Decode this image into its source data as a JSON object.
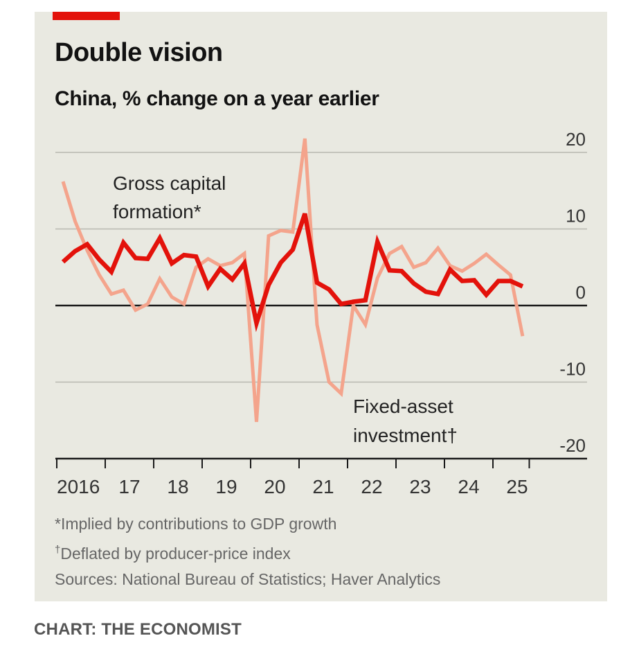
{
  "header": {
    "title": "Double vision",
    "subtitle": "China, % change on a year earlier"
  },
  "footnotes": {
    "note1_mark": "*",
    "note1": "Implied by contributions to GDP growth",
    "note2_mark": "†",
    "note2": "Deflated by producer-price index",
    "sources": "Sources: National Bureau of Statistics; Haver Analytics"
  },
  "credit": "CHART: THE ECONOMIST",
  "colors": {
    "accent": "#E3120B",
    "gross_capital_formation": "#E3120B",
    "fixed_asset_investment": "#F4A48C",
    "background": "#E9E9E1"
  },
  "chart_data": {
    "type": "line",
    "title": "Double vision",
    "subtitle": "China, % change on a year earlier",
    "xlabel": "",
    "ylabel": "",
    "ylim": [
      -20,
      20
    ],
    "yticks": [
      20,
      10,
      0,
      -10,
      -20
    ],
    "y_axis_side": "right",
    "grid": true,
    "x_tick_labels": [
      "2016",
      "17",
      "18",
      "19",
      "20",
      "21",
      "22",
      "23",
      "24",
      "25"
    ],
    "x_frequency": "quarterly",
    "x_start": "2016 Q1",
    "x_end": "2025 Q3",
    "x": [
      "2016Q1",
      "2016Q2",
      "2016Q3",
      "2016Q4",
      "2017Q1",
      "2017Q2",
      "2017Q3",
      "2017Q4",
      "2018Q1",
      "2018Q2",
      "2018Q3",
      "2018Q4",
      "2019Q1",
      "2019Q2",
      "2019Q3",
      "2019Q4",
      "2020Q1",
      "2020Q2",
      "2020Q3",
      "2020Q4",
      "2021Q1",
      "2021Q2",
      "2021Q3",
      "2021Q4",
      "2022Q1",
      "2022Q2",
      "2022Q3",
      "2022Q4",
      "2023Q1",
      "2023Q2",
      "2023Q3",
      "2023Q4",
      "2024Q1",
      "2024Q2",
      "2024Q3",
      "2024Q4",
      "2025Q1",
      "2025Q2",
      "2025Q3"
    ],
    "series": [
      {
        "name": "Fixed-asset investment",
        "label": "Fixed-asset investment",
        "label_mark": "†",
        "color": "#F4A48C",
        "values": [
          16.2,
          11.0,
          7.2,
          4.0,
          1.5,
          2.0,
          -0.6,
          0.2,
          3.5,
          1.1,
          0.2,
          5.0,
          6.1,
          5.2,
          5.6,
          6.8,
          -15.2,
          9.1,
          9.8,
          9.6,
          21.8,
          -2.5,
          -10.0,
          -11.5,
          0.0,
          -2.5,
          3.6,
          6.8,
          7.7,
          5.0,
          5.6,
          7.5,
          5.2,
          4.5,
          5.5,
          6.7,
          5.3,
          4.0,
          -4.0
        ]
      },
      {
        "name": "Gross capital formation",
        "label": "Gross capital formation",
        "label_mark": "*",
        "color": "#E3120B",
        "values": [
          5.7,
          7.1,
          8.0,
          6.0,
          4.4,
          8.2,
          6.2,
          6.1,
          8.8,
          5.5,
          6.6,
          6.4,
          2.5,
          4.8,
          3.4,
          5.5,
          -2.3,
          2.7,
          5.6,
          7.3,
          12.0,
          3.0,
          2.1,
          0.2,
          0.5,
          0.7,
          8.3,
          4.6,
          4.5,
          2.9,
          1.8,
          1.5,
          4.7,
          3.2,
          3.3,
          1.4,
          3.2,
          3.2,
          2.5
        ]
      }
    ],
    "annotations": [
      {
        "text_line1": "Gross capital",
        "text_line2": "formation*",
        "series": "Gross capital formation"
      },
      {
        "text_line1": "Fixed-asset",
        "text_line2": "investment†",
        "series": "Fixed-asset investment"
      }
    ]
  }
}
